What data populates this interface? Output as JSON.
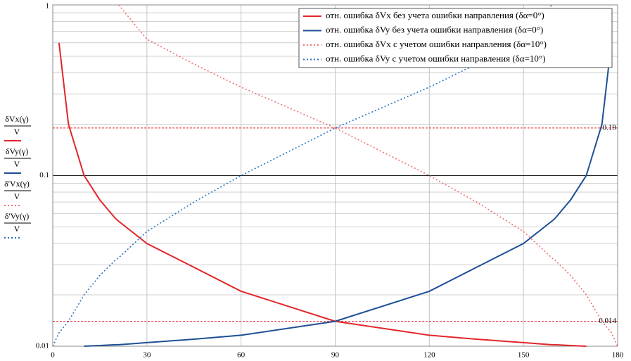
{
  "chart_data": {
    "type": "line",
    "log_y": true,
    "grid": true,
    "legend_position": "upper right",
    "x": [
      0,
      2,
      5,
      10,
      15,
      20,
      21,
      30,
      45,
      60,
      90,
      120,
      135,
      150,
      159,
      160,
      165,
      170,
      175,
      178,
      180
    ],
    "xlim": [
      0,
      180
    ],
    "xticks": [
      0,
      30,
      60,
      90,
      120,
      150,
      180
    ],
    "ylim": [
      0.01,
      1
    ],
    "yticks": [
      0.01,
      0.1,
      1
    ],
    "series": [
      {
        "name": "отн. ошибка δVx без учета ошибки направления (δα=0°)",
        "color": "#e2262b",
        "dashed": false,
        "y_label": {
          "numerator": "δVx(γ)",
          "denominator": "V"
        },
        "values": [
          null,
          0.6,
          0.2,
          0.1,
          0.072,
          0.056,
          0.054,
          0.04,
          0.029,
          0.021,
          0.014,
          0.0116,
          0.011,
          0.0105,
          0.0102,
          0.0102,
          0.0101,
          0.01,
          null,
          null,
          null
        ]
      },
      {
        "name": "отн. ошибка δVy без учета ошибки направления (δα=0°)",
        "color": "#1f4f95",
        "dashed": false,
        "y_label": {
          "numerator": "δVy(γ)",
          "denominator": "V"
        },
        "values": [
          null,
          null,
          null,
          0.01,
          0.0101,
          0.0102,
          0.0102,
          0.0105,
          0.011,
          0.0116,
          0.014,
          0.021,
          0.029,
          0.04,
          0.054,
          0.056,
          0.072,
          0.1,
          0.2,
          0.6,
          null
        ]
      },
      {
        "name": "отн. ошибка δVx с учетом ошибки направления (δα=10°)",
        "color": "#ef6f6f",
        "dashed": true,
        "y_label": {
          "numerator": "δ'Vx(γ)",
          "denominator": "V"
        },
        "values": [
          null,
          null,
          null,
          null,
          null,
          null,
          1,
          0.63,
          0.45,
          0.33,
          0.19,
          0.1,
          0.07,
          0.047,
          0.033,
          0.032,
          0.026,
          0.02,
          0.014,
          0.012,
          0.01
        ]
      },
      {
        "name": "отн. ошибка δVy с учетом ошибки направления (δα=10°)",
        "color": "#2a74c4",
        "dashed": true,
        "y_label": {
          "numerator": "δ'Vy(γ)",
          "denominator": "V"
        },
        "values": [
          0.01,
          0.012,
          0.014,
          0.02,
          0.026,
          0.032,
          0.033,
          0.047,
          0.07,
          0.1,
          0.19,
          0.33,
          0.45,
          0.63,
          1,
          null,
          null,
          null,
          null,
          null,
          null
        ]
      }
    ],
    "hlines": [
      {
        "value": 0.19,
        "color": "#e2262b"
      },
      {
        "value": 0.014,
        "color": "#e2262b"
      }
    ]
  }
}
